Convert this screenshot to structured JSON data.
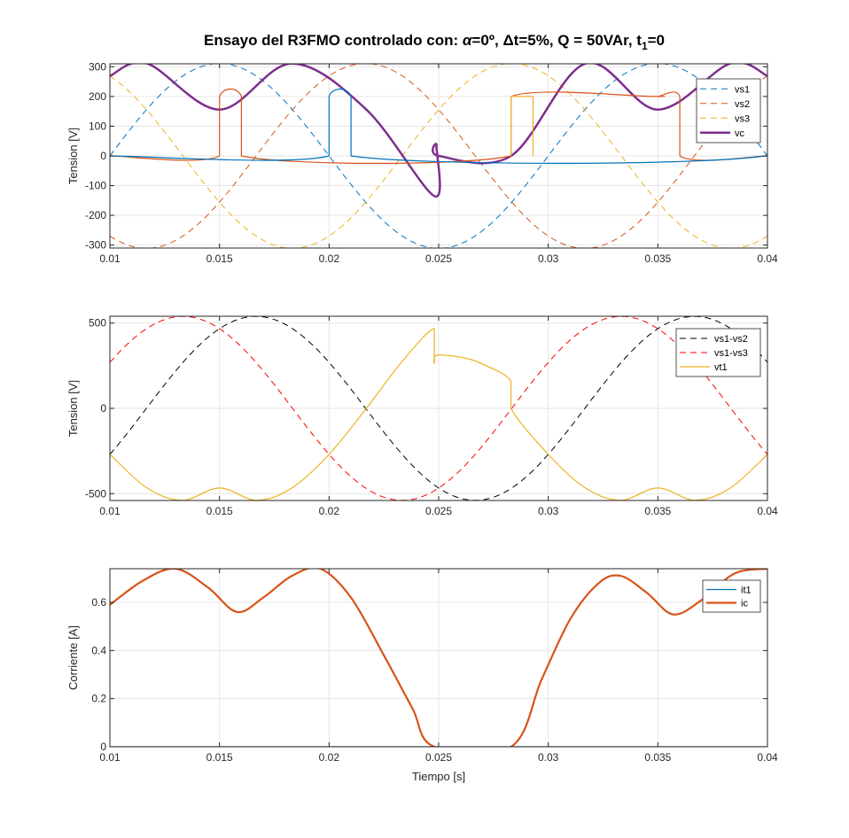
{
  "figure": {
    "title_main": "Ensayo del R3FMO controlado con: ",
    "title_alpha": "α",
    "title_part2": "=0º, ",
    "title_delta": "Δ",
    "title_part3": "t=5%, Q = 50VAr, t",
    "title_sub": "1",
    "title_part4": "=0"
  },
  "chart_data": [
    {
      "type": "line",
      "ylabel": "Tension [V]",
      "xlabel": "",
      "xlim": [
        0.01,
        0.04
      ],
      "ylim": [
        -310,
        310
      ],
      "xticks": [
        "0.01",
        "0.015",
        "0.02",
        "0.025",
        "0.03",
        "0.035",
        "0.04"
      ],
      "xtick_values": [
        0.01,
        0.015,
        0.02,
        0.025,
        0.03,
        0.035,
        0.04
      ],
      "yticks": [
        "-300",
        "-200",
        "-100",
        "0",
        "100",
        "200",
        "300"
      ],
      "ytick_values": [
        -300,
        -200,
        -100,
        0,
        100,
        200,
        300
      ],
      "grid": true,
      "legend_position": "top-right",
      "series": [
        {
          "name": "vs1",
          "color": "#0072BD",
          "dash": "dashed",
          "function": "sine",
          "amplitude": 311,
          "freq_hz": 50,
          "phase_deg": 180
        },
        {
          "name": "vs2",
          "color": "#D95319",
          "dash": "dashed",
          "function": "sine",
          "amplitude": 311,
          "freq_hz": 50,
          "phase_deg": 60
        },
        {
          "name": "vs3",
          "color": "#EDB120",
          "dash": "dashed",
          "function": "sine",
          "amplitude": 311,
          "freq_hz": 50,
          "phase_deg": -60
        },
        {
          "name": "vc",
          "color": "#7E2F8E",
          "dash": "solid",
          "width": 2.5,
          "x": [
            0.01,
            0.0117,
            0.015,
            0.0183,
            0.0217,
            0.0248,
            0.0249,
            0.025,
            0.0283,
            0.0317,
            0.035,
            0.0383,
            0.04
          ],
          "y": [
            269,
            311,
            156,
            311,
            156,
            -135,
            35,
            0,
            0,
            311,
            156,
            311,
            269
          ]
        },
        {
          "name": "",
          "color": "#D95319",
          "dash": "solid",
          "width": 1.2,
          "show_in_legend": false,
          "x": [
            0.01,
            0.015,
            0.015,
            0.016,
            0.016,
            0.0283,
            0.0283,
            0.0348,
            0.035,
            0.036,
            0.036,
            0.04
          ],
          "y": [
            0,
            0,
            200,
            200,
            0,
            0,
            200,
            200,
            200,
            200,
            0,
            0
          ]
        },
        {
          "name": "",
          "color": "#0072BD",
          "dash": "solid",
          "width": 1.2,
          "show_in_legend": false,
          "x": [
            0.01,
            0.02,
            0.02,
            0.021,
            0.021,
            0.0399,
            0.04
          ],
          "y": [
            0,
            0,
            200,
            200,
            0,
            0,
            200
          ]
        },
        {
          "name": "",
          "color": "#EDB120",
          "dash": "solid",
          "width": 1.2,
          "show_in_legend": false,
          "x": [
            0.0283,
            0.0283,
            0.0293,
            0.0293
          ],
          "y": [
            0,
            200,
            200,
            0
          ]
        }
      ]
    },
    {
      "type": "line",
      "ylabel": "Tension [V]",
      "xlabel": "",
      "xlim": [
        0.01,
        0.04
      ],
      "ylim": [
        -540,
        540
      ],
      "xticks": [
        "0.01",
        "0.015",
        "0.02",
        "0.025",
        "0.03",
        "0.035",
        "0.04"
      ],
      "xtick_values": [
        0.01,
        0.015,
        0.02,
        0.025,
        0.03,
        0.035,
        0.04
      ],
      "yticks": [
        "-500",
        "0",
        "500"
      ],
      "ytick_values": [
        -500,
        0,
        500
      ],
      "grid": true,
      "legend_position": "top-right",
      "series": [
        {
          "name": "vs1-vs2",
          "color": "#000000",
          "dash": "dashed",
          "function": "sine",
          "amplitude": 539,
          "freq_hz": 50,
          "phase_deg": 150
        },
        {
          "name": "vs1-vs3",
          "color": "#FF0000",
          "dash": "dashed",
          "function": "sine",
          "amplitude": 539,
          "freq_hz": 50,
          "phase_deg": -150
        },
        {
          "name": "vt1",
          "color": "#EDB120",
          "dash": "solid",
          "width": 1.2,
          "x": [
            0.01,
            0.0117,
            0.0133,
            0.015,
            0.0167,
            0.0183,
            0.02,
            0.0217,
            0.0233,
            0.0248,
            0.0248,
            0.0249,
            0.026,
            0.027,
            0.0283,
            0.0283,
            0.03,
            0.0317,
            0.0333,
            0.035,
            0.0367,
            0.0383,
            0.04
          ],
          "y": [
            -270,
            -467,
            -539,
            -467,
            -539,
            -467,
            -270,
            0,
            270,
            467,
            270,
            311,
            300,
            260,
            160,
            0,
            -270,
            -467,
            -539,
            -467,
            -539,
            -467,
            -270
          ]
        }
      ]
    },
    {
      "type": "line",
      "ylabel": "Corriente [A]",
      "xlabel": "Tiempo [s]",
      "xlim": [
        0.01,
        0.04
      ],
      "ylim": [
        0,
        0.74
      ],
      "xticks": [
        "0.01",
        "0.015",
        "0.02",
        "0.025",
        "0.03",
        "0.035",
        "0.04"
      ],
      "xtick_values": [
        0.01,
        0.015,
        0.02,
        0.025,
        0.03,
        0.035,
        0.04
      ],
      "yticks": [
        "0",
        "0.2",
        "0.4",
        "0.6"
      ],
      "ytick_values": [
        0,
        0.2,
        0.4,
        0.6
      ],
      "grid": true,
      "legend_position": "top-right",
      "series": [
        {
          "name": "it1",
          "color": "#0072BD",
          "dash": "solid",
          "width": 1.2,
          "x": [
            0.01,
            0.04
          ],
          "y": [
            0,
            0
          ]
        },
        {
          "name": "ic",
          "color": "#D95319",
          "dash": "solid",
          "width": 2.2,
          "x": [
            0.01,
            0.0115,
            0.013,
            0.0145,
            0.0158,
            0.017,
            0.0183,
            0.0196,
            0.021,
            0.0225,
            0.0238,
            0.0248,
            0.0283,
            0.0297,
            0.031,
            0.0323,
            0.0333,
            0.0345,
            0.0357,
            0.037,
            0.0385,
            0.04
          ],
          "y": [
            0.59,
            0.69,
            0.74,
            0.66,
            0.56,
            0.62,
            0.71,
            0.74,
            0.62,
            0.38,
            0.16,
            0.0,
            0.0,
            0.28,
            0.53,
            0.68,
            0.71,
            0.64,
            0.55,
            0.61,
            0.72,
            0.74
          ]
        }
      ]
    }
  ]
}
